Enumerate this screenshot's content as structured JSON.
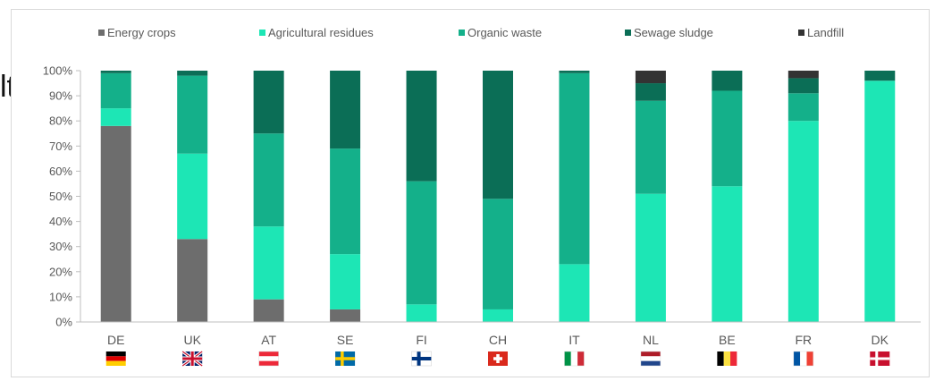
{
  "edge_text": "lt",
  "colors": {
    "energy_crops": "#6d6d6d",
    "agricultural_residues": "#1de6b5",
    "organic_waste": "#14b08a",
    "sewage_sludge": "#0b6e56",
    "landfill": "#333333",
    "axis": "#bfbfbf",
    "text": "#595959"
  },
  "chart_data": {
    "type": "bar",
    "stacked": true,
    "categories": [
      "DE",
      "UK",
      "AT",
      "SE",
      "FI",
      "CH",
      "IT",
      "NL",
      "BE",
      "FR",
      "DK"
    ],
    "flags": [
      "germany-flag",
      "uk-flag",
      "austria-flag",
      "sweden-flag",
      "finland-flag",
      "switzerland-flag",
      "italy-flag",
      "netherlands-flag",
      "belgium-flag",
      "france-flag",
      "denmark-flag"
    ],
    "series": [
      {
        "name": "Energy crops",
        "color": "#6d6d6d",
        "values": [
          78,
          33,
          9,
          5,
          0,
          0,
          0,
          0,
          0,
          0,
          0
        ]
      },
      {
        "name": "Agricultural residues",
        "color": "#1de6b5",
        "values": [
          7,
          34,
          29,
          22,
          7,
          5,
          23,
          51,
          54,
          80,
          96
        ]
      },
      {
        "name": "Organic waste",
        "color": "#14b08a",
        "values": [
          14,
          31,
          37,
          42,
          49,
          44,
          76,
          37,
          38,
          11,
          0
        ]
      },
      {
        "name": "Sewage sludge",
        "color": "#0b6e56",
        "values": [
          1,
          2,
          25,
          31,
          44,
          51,
          1,
          7,
          8,
          6,
          4
        ]
      },
      {
        "name": "Landfill",
        "color": "#333333",
        "values": [
          0,
          0,
          0,
          0,
          0,
          0,
          0,
          5,
          0,
          3,
          0
        ]
      }
    ],
    "y_ticks": [
      "0%",
      "10%",
      "20%",
      "30%",
      "40%",
      "50%",
      "60%",
      "70%",
      "80%",
      "90%",
      "100%"
    ],
    "ylim": [
      0,
      100
    ],
    "legend_position": "top",
    "grid": false
  }
}
